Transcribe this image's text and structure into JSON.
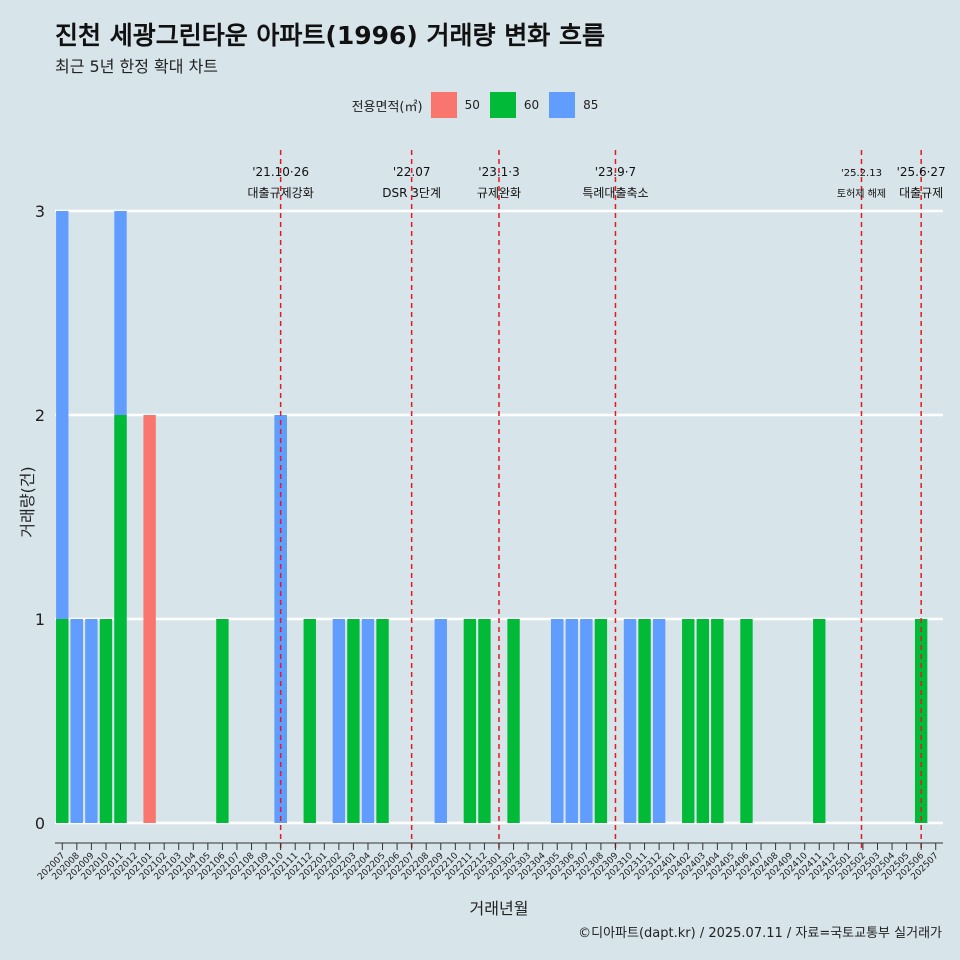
{
  "title": "진천 세광그린타운 아파트(1996) 거래량 변화 흐름",
  "subtitle": "최근 5년 한정 확대 차트",
  "caption": "©디아파트(dapt.kr) / 2025.07.11 / 자료=국토교통부 실거래가",
  "legend": {
    "title": "전용면적(㎡)",
    "items": [
      {
        "label": "50",
        "color": "#f8766d"
      },
      {
        "label": "60",
        "color": "#00ba38"
      },
      {
        "label": "85",
        "color": "#619cff"
      }
    ]
  },
  "chart_data": {
    "type": "bar",
    "xlabel": "거래년월",
    "ylabel": "거래량(건)",
    "ylim": [
      0,
      3
    ],
    "yticks": [
      0,
      1,
      2,
      3
    ],
    "grid": true,
    "legend_position": "top",
    "categories": [
      "202007",
      "202008",
      "202009",
      "202010",
      "202011",
      "202012",
      "202101",
      "202102",
      "202103",
      "202104",
      "202105",
      "202106",
      "202107",
      "202108",
      "202109",
      "202110",
      "202111",
      "202112",
      "202201",
      "202202",
      "202203",
      "202204",
      "202205",
      "202206",
      "202207",
      "202208",
      "202209",
      "202210",
      "202211",
      "202212",
      "202301",
      "202302",
      "202303",
      "202304",
      "202305",
      "202306",
      "202307",
      "202308",
      "202309",
      "202310",
      "202311",
      "202312",
      "202401",
      "202402",
      "202403",
      "202404",
      "202405",
      "202406",
      "202407",
      "202408",
      "202409",
      "202410",
      "202411",
      "202412",
      "202501",
      "202502",
      "202503",
      "202504",
      "202505",
      "202506",
      "202507"
    ],
    "bars": [
      {
        "month": "202007",
        "area": "60",
        "value": 1
      },
      {
        "month": "202007",
        "area": "85",
        "value": 3
      },
      {
        "month": "202008",
        "area": "60",
        "value": 1
      },
      {
        "month": "202008",
        "area": "85",
        "value": 1
      },
      {
        "month": "202009",
        "area": "85",
        "value": 1
      },
      {
        "month": "202010",
        "area": "60",
        "value": 1
      },
      {
        "month": "202011",
        "area": "60",
        "value": 2
      },
      {
        "month": "202011",
        "area": "85",
        "value": 3
      },
      {
        "month": "202101",
        "area": "50",
        "value": 2
      },
      {
        "month": "202106",
        "area": "60",
        "value": 1
      },
      {
        "month": "202110",
        "area": "60",
        "value": 2
      },
      {
        "month": "202110",
        "area": "85",
        "value": 2
      },
      {
        "month": "202112",
        "area": "60",
        "value": 1
      },
      {
        "month": "202202",
        "area": "85",
        "value": 1
      },
      {
        "month": "202203",
        "area": "60",
        "value": 1
      },
      {
        "month": "202204",
        "area": "85",
        "value": 1
      },
      {
        "month": "202205",
        "area": "60",
        "value": 1
      },
      {
        "month": "202209",
        "area": "85",
        "value": 1
      },
      {
        "month": "202211",
        "area": "60",
        "value": 1
      },
      {
        "month": "202212",
        "area": "60",
        "value": 1
      },
      {
        "month": "202302",
        "area": "60",
        "value": 1
      },
      {
        "month": "202305",
        "area": "60",
        "value": 1
      },
      {
        "month": "202305",
        "area": "85",
        "value": 1
      },
      {
        "month": "202306",
        "area": "85",
        "value": 1
      },
      {
        "month": "202307",
        "area": "85",
        "value": 1
      },
      {
        "month": "202308",
        "area": "60",
        "value": 1
      },
      {
        "month": "202310",
        "area": "85",
        "value": 1
      },
      {
        "month": "202311",
        "area": "60",
        "value": 1
      },
      {
        "month": "202312",
        "area": "85",
        "value": 1
      },
      {
        "month": "202402",
        "area": "60",
        "value": 1
      },
      {
        "month": "202403",
        "area": "60",
        "value": 1
      },
      {
        "month": "202404",
        "area": "50",
        "value": 1
      },
      {
        "month": "202404",
        "area": "60",
        "value": 1
      },
      {
        "month": "202406",
        "area": "60",
        "value": 1
      },
      {
        "month": "202411",
        "area": "60",
        "value": 1
      },
      {
        "month": "202506",
        "area": "60",
        "value": 1
      }
    ],
    "annotations": [
      {
        "x": "202110.5",
        "date": "'21.10·26",
        "text": "대출규제강화"
      },
      {
        "x": "202207",
        "date": "'22.07",
        "text": "DSR 3단계"
      },
      {
        "x": "202301",
        "date": "'23.1·3",
        "text": "규제완화"
      },
      {
        "x": "202309",
        "date": "'23.9·7",
        "text": "특례대출축소"
      },
      {
        "x": "202502.4",
        "date": "'25.2.13",
        "text": "토허제 해제",
        "small": true
      },
      {
        "x": "202506.5",
        "date": "'25.6·27",
        "text": "대출규제"
      }
    ]
  }
}
